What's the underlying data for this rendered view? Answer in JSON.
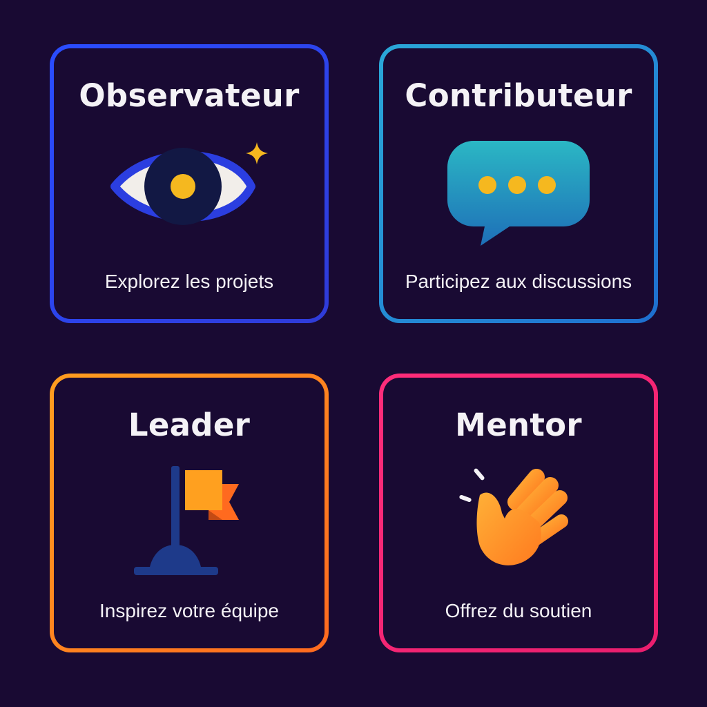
{
  "cards": [
    {
      "title": "Observateur",
      "subtitle": "Explorez les projets",
      "icon": "eye-icon",
      "accent": "#2a44e6"
    },
    {
      "title": "Contributeur",
      "subtitle": "Participez aux discussions",
      "icon": "chat-bubble-icon",
      "accent": "#1f8fcf"
    },
    {
      "title": "Leader",
      "subtitle": "Inspirez votre équipe",
      "icon": "flag-icon",
      "accent": "#ff8a1f"
    },
    {
      "title": "Mentor",
      "subtitle": "Offrez du soutien",
      "icon": "waving-hand-icon",
      "accent": "#ff2d7a"
    }
  ],
  "colors": {
    "background": "#190a33",
    "text": "#f4f2f6",
    "gold": "#f5b81f"
  }
}
